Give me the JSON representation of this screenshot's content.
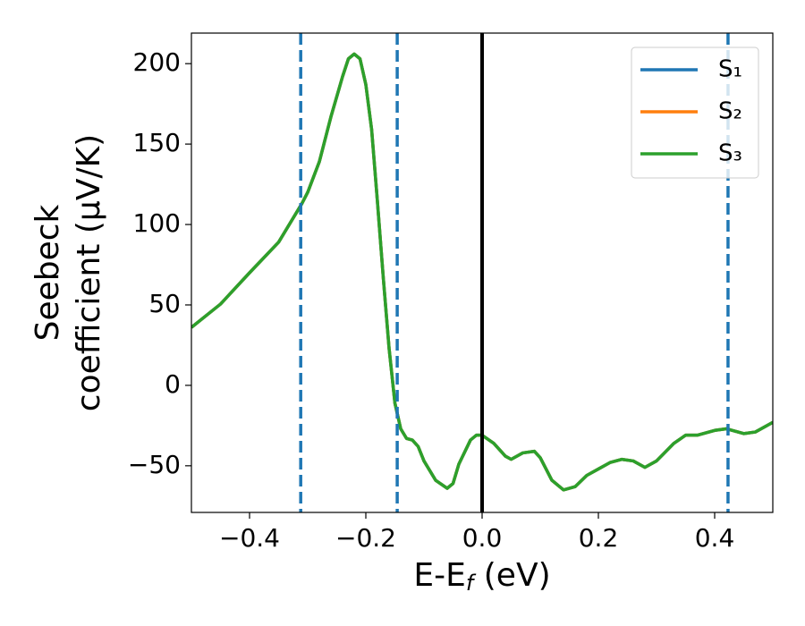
{
  "chart_data": {
    "type": "line",
    "y_label": [
      "Seebeck",
      "coefficient  (μV/K)"
    ],
    "x_label": {
      "main": "E-E",
      "sub": "f",
      "rest": " (eV)"
    },
    "x": [
      -0.5,
      -0.45,
      -0.4,
      -0.35,
      -0.31,
      -0.3,
      -0.28,
      -0.26,
      -0.24,
      -0.23,
      -0.22,
      -0.21,
      -0.2,
      -0.19,
      -0.18,
      -0.17,
      -0.16,
      -0.15,
      -0.14,
      -0.13,
      -0.12,
      -0.11,
      -0.1,
      -0.08,
      -0.06,
      -0.05,
      -0.04,
      -0.02,
      -0.01,
      0.0,
      0.02,
      0.04,
      0.05,
      0.07,
      0.09,
      0.1,
      0.12,
      0.14,
      0.16,
      0.18,
      0.2,
      0.22,
      0.24,
      0.26,
      0.28,
      0.3,
      0.33,
      0.35,
      0.37,
      0.4,
      0.42,
      0.45,
      0.47,
      0.5
    ],
    "series": [
      {
        "name": "S₁",
        "color": "#1f77b4",
        "values": [
          36,
          50.5,
          70,
          89,
          113,
          120,
          139,
          167,
          192,
          203,
          206,
          203,
          187,
          159,
          114,
          67,
          23,
          -11,
          -27,
          -33,
          -34,
          -38,
          -47,
          -59,
          -64,
          -61,
          -49,
          -34,
          -31,
          -31,
          -36,
          -44,
          -46,
          -42,
          -41,
          -45,
          -59,
          -65,
          -63,
          -56,
          -52,
          -48,
          -46,
          -47,
          -51,
          -47,
          -36,
          -31,
          -31,
          -28,
          -27,
          -30,
          -29,
          -23
        ]
      },
      {
        "name": "S₂",
        "color": "#ff7f0e",
        "values": [
          36,
          50.5,
          70,
          89,
          113,
          120,
          139,
          167,
          192,
          203,
          206,
          203,
          187,
          159,
          114,
          67,
          23,
          -11,
          -27,
          -33,
          -34,
          -38,
          -47,
          -59,
          -64,
          -61,
          -49,
          -34,
          -31,
          -31,
          -36,
          -44,
          -46,
          -42,
          -41,
          -45,
          -59,
          -65,
          -63,
          -56,
          -52,
          -48,
          -46,
          -47,
          -51,
          -47,
          -36,
          -31,
          -31,
          -28,
          -27,
          -30,
          -29,
          -23
        ]
      },
      {
        "name": "S₃",
        "color": "#2ca02c",
        "values": [
          36,
          50.5,
          70,
          89,
          113,
          120,
          139,
          167,
          192,
          203,
          206,
          203,
          187,
          159,
          114,
          67,
          23,
          -11,
          -27,
          -33,
          -34,
          -38,
          -47,
          -59,
          -64,
          -61,
          -49,
          -34,
          -31,
          -31,
          -36,
          -44,
          -46,
          -42,
          -41,
          -45,
          -59,
          -65,
          -63,
          -56,
          -52,
          -48,
          -46,
          -47,
          -51,
          -47,
          -36,
          -31,
          -31,
          -28,
          -27,
          -30,
          -29,
          -23
        ]
      }
    ],
    "vlines": [
      {
        "x": -0.312,
        "color": "#1f77b4",
        "dashed": true
      },
      {
        "x": -0.146,
        "color": "#1f77b4",
        "dashed": true
      },
      {
        "x": 0.423,
        "color": "#1f77b4",
        "dashed": true
      },
      {
        "x": 0,
        "color": "#000000",
        "dashed": false
      }
    ],
    "xlim": [
      -0.5,
      0.5
    ],
    "ylim": [
      -79,
      219
    ],
    "xticks": [
      {
        "value": -0.4,
        "label": "−0.4"
      },
      {
        "value": -0.2,
        "label": "−0.2"
      },
      {
        "value": 0,
        "label": "0.0"
      },
      0.2,
      0.4
    ],
    "yticks": [
      {
        "value": -50,
        "label": "−50"
      },
      0,
      50,
      100,
      150,
      200
    ],
    "legend": "upper right",
    "grid": false
  }
}
